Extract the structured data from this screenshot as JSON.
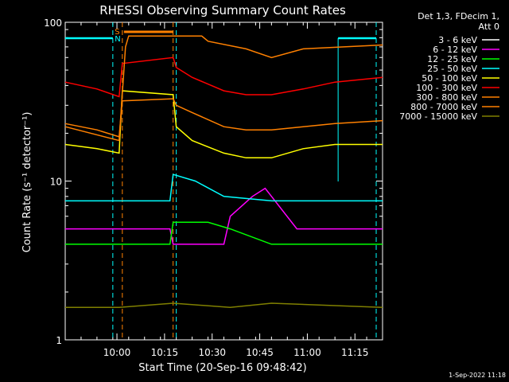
{
  "chart_data": {
    "type": "line",
    "title": "RHESSI Observing Summary Count Rates",
    "xlabel": "Start Time (20-Sep-16 09:48:42)",
    "ylabel": "Count Rate (s⁻¹ detector⁻¹)",
    "y_scale": "log",
    "ylim": [
      1,
      100
    ],
    "y_ticks": [
      {
        "v": 1,
        "label": "1"
      },
      {
        "v": 10,
        "label": "10"
      },
      {
        "v": 100,
        "label": "100"
      }
    ],
    "x_range_min": [
      -5,
      95
    ],
    "x_ticks": [
      {
        "v": 11.3,
        "label": "10:00"
      },
      {
        "v": 26.3,
        "label": "10:15"
      },
      {
        "v": 41.3,
        "label": "10:30"
      },
      {
        "v": 56.3,
        "label": "10:45"
      },
      {
        "v": 71.3,
        "label": "11:00"
      },
      {
        "v": 86.3,
        "label": "11:15"
      }
    ],
    "legend_header": [
      "Det 1,3, FDecim 1,",
      "Att 0"
    ],
    "legend_placement": "right",
    "series": [
      {
        "name": "3 - 6 keV",
        "color": "#ffffff",
        "values": []
      },
      {
        "name": "6 - 12 keV",
        "color": "#ff00ff",
        "values": [
          [
            -5,
            5
          ],
          [
            10,
            5
          ],
          [
            12,
            5
          ],
          [
            28,
            5
          ],
          [
            29,
            4
          ],
          [
            45,
            4
          ],
          [
            47,
            6
          ],
          [
            54,
            8
          ],
          [
            58,
            9
          ],
          [
            60,
            8
          ],
          [
            68,
            5
          ],
          [
            80,
            5
          ],
          [
            95,
            5
          ]
        ]
      },
      {
        "name": "12 - 25 keV",
        "color": "#00ff00",
        "values": [
          [
            -5,
            4
          ],
          [
            12,
            4
          ],
          [
            28,
            4
          ],
          [
            29,
            5.5
          ],
          [
            40,
            5.5
          ],
          [
            47,
            5
          ],
          [
            60,
            4
          ],
          [
            80,
            4
          ],
          [
            95,
            4
          ]
        ]
      },
      {
        "name": "25 - 50 keV",
        "color": "#00ffff",
        "values": [
          [
            -5,
            7.5
          ],
          [
            12,
            7.5
          ],
          [
            28,
            7.5
          ],
          [
            29,
            11
          ],
          [
            36,
            10
          ],
          [
            45,
            8
          ],
          [
            60,
            7.5
          ],
          [
            80,
            7.5
          ],
          [
            95,
            7.5
          ]
        ]
      },
      {
        "name": "50 - 100 keV",
        "color": "#ffff00",
        "values": [
          [
            -5,
            17
          ],
          [
            5,
            16
          ],
          [
            12,
            15
          ],
          [
            13,
            37
          ],
          [
            29,
            35
          ],
          [
            30,
            22
          ],
          [
            35,
            18
          ],
          [
            45,
            15
          ],
          [
            52,
            14
          ],
          [
            60,
            14
          ],
          [
            70,
            16
          ],
          [
            80,
            17
          ],
          [
            95,
            17
          ]
        ]
      },
      {
        "name": "100 - 300 keV",
        "color": "#ff0000",
        "values": [
          [
            -5,
            42
          ],
          [
            5,
            38
          ],
          [
            12,
            34
          ],
          [
            13,
            55
          ],
          [
            29,
            60
          ],
          [
            30,
            52
          ],
          [
            35,
            45
          ],
          [
            45,
            37
          ],
          [
            52,
            35
          ],
          [
            60,
            35
          ],
          [
            70,
            38
          ],
          [
            80,
            42
          ],
          [
            95,
            45
          ]
        ]
      },
      {
        "name": "300 - 800 keV",
        "color": "#ff8000",
        "values": [
          [
            -5,
            23
          ],
          [
            5,
            21
          ],
          [
            12,
            19
          ],
          [
            13,
            32
          ],
          [
            29,
            33
          ],
          [
            30,
            30
          ],
          [
            35,
            27
          ],
          [
            45,
            22
          ],
          [
            52,
            21
          ],
          [
            60,
            21
          ],
          [
            70,
            22
          ],
          [
            80,
            23
          ],
          [
            95,
            24
          ]
        ]
      },
      {
        "name": "800 - 7000 keV",
        "color": "#ff8000",
        "values": [
          [
            -5,
            22
          ],
          [
            12,
            18
          ],
          [
            14,
            70
          ],
          [
            15,
            82
          ],
          [
            38,
            82
          ],
          [
            40,
            76
          ],
          [
            52,
            68
          ],
          [
            60,
            60
          ],
          [
            70,
            68
          ],
          [
            95,
            72
          ]
        ]
      },
      {
        "name": "7000 - 15000 keV",
        "color": "#808000",
        "values": [
          [
            -5,
            1.6
          ],
          [
            12,
            1.6
          ],
          [
            29,
            1.7
          ],
          [
            47,
            1.6
          ],
          [
            60,
            1.7
          ],
          [
            95,
            1.6
          ]
        ]
      }
    ],
    "flag_labels": [
      {
        "text": "S",
        "color": "#ff8000"
      },
      {
        "text": "N",
        "color": "#00ffff"
      }
    ]
  },
  "footer": {
    "timestamp": "1-Sep-2022 11:18"
  }
}
